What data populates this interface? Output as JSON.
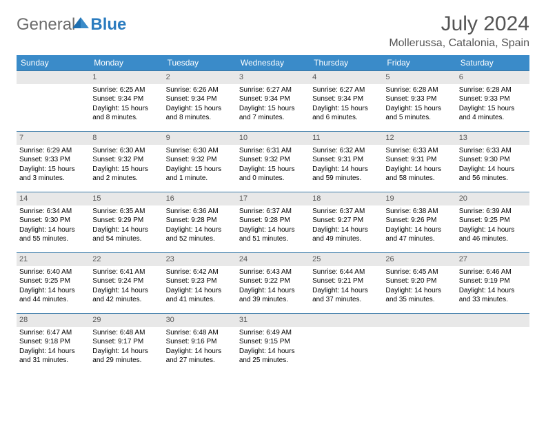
{
  "logo": {
    "text1": "General",
    "text2": "Blue"
  },
  "title": "July 2024",
  "location": "Mollerussa, Catalonia, Spain",
  "colors": {
    "header_bg": "#3a8bc9",
    "header_text": "#ffffff",
    "daynum_bg": "#e8e8e8",
    "border": "#3a7aa8",
    "logo_general": "#6b6b6b",
    "logo_blue": "#2a7bbf"
  },
  "day_headers": [
    "Sunday",
    "Monday",
    "Tuesday",
    "Wednesday",
    "Thursday",
    "Friday",
    "Saturday"
  ],
  "weeks": [
    [
      {
        "empty": true
      },
      {
        "num": "1",
        "sunrise": "6:25 AM",
        "sunset": "9:34 PM",
        "daylight": "15 hours and 8 minutes."
      },
      {
        "num": "2",
        "sunrise": "6:26 AM",
        "sunset": "9:34 PM",
        "daylight": "15 hours and 8 minutes."
      },
      {
        "num": "3",
        "sunrise": "6:27 AM",
        "sunset": "9:34 PM",
        "daylight": "15 hours and 7 minutes."
      },
      {
        "num": "4",
        "sunrise": "6:27 AM",
        "sunset": "9:34 PM",
        "daylight": "15 hours and 6 minutes."
      },
      {
        "num": "5",
        "sunrise": "6:28 AM",
        "sunset": "9:33 PM",
        "daylight": "15 hours and 5 minutes."
      },
      {
        "num": "6",
        "sunrise": "6:28 AM",
        "sunset": "9:33 PM",
        "daylight": "15 hours and 4 minutes."
      }
    ],
    [
      {
        "num": "7",
        "sunrise": "6:29 AM",
        "sunset": "9:33 PM",
        "daylight": "15 hours and 3 minutes."
      },
      {
        "num": "8",
        "sunrise": "6:30 AM",
        "sunset": "9:32 PM",
        "daylight": "15 hours and 2 minutes."
      },
      {
        "num": "9",
        "sunrise": "6:30 AM",
        "sunset": "9:32 PM",
        "daylight": "15 hours and 1 minute."
      },
      {
        "num": "10",
        "sunrise": "6:31 AM",
        "sunset": "9:32 PM",
        "daylight": "15 hours and 0 minutes."
      },
      {
        "num": "11",
        "sunrise": "6:32 AM",
        "sunset": "9:31 PM",
        "daylight": "14 hours and 59 minutes."
      },
      {
        "num": "12",
        "sunrise": "6:33 AM",
        "sunset": "9:31 PM",
        "daylight": "14 hours and 58 minutes."
      },
      {
        "num": "13",
        "sunrise": "6:33 AM",
        "sunset": "9:30 PM",
        "daylight": "14 hours and 56 minutes."
      }
    ],
    [
      {
        "num": "14",
        "sunrise": "6:34 AM",
        "sunset": "9:30 PM",
        "daylight": "14 hours and 55 minutes."
      },
      {
        "num": "15",
        "sunrise": "6:35 AM",
        "sunset": "9:29 PM",
        "daylight": "14 hours and 54 minutes."
      },
      {
        "num": "16",
        "sunrise": "6:36 AM",
        "sunset": "9:28 PM",
        "daylight": "14 hours and 52 minutes."
      },
      {
        "num": "17",
        "sunrise": "6:37 AM",
        "sunset": "9:28 PM",
        "daylight": "14 hours and 51 minutes."
      },
      {
        "num": "18",
        "sunrise": "6:37 AM",
        "sunset": "9:27 PM",
        "daylight": "14 hours and 49 minutes."
      },
      {
        "num": "19",
        "sunrise": "6:38 AM",
        "sunset": "9:26 PM",
        "daylight": "14 hours and 47 minutes."
      },
      {
        "num": "20",
        "sunrise": "6:39 AM",
        "sunset": "9:25 PM",
        "daylight": "14 hours and 46 minutes."
      }
    ],
    [
      {
        "num": "21",
        "sunrise": "6:40 AM",
        "sunset": "9:25 PM",
        "daylight": "14 hours and 44 minutes."
      },
      {
        "num": "22",
        "sunrise": "6:41 AM",
        "sunset": "9:24 PM",
        "daylight": "14 hours and 42 minutes."
      },
      {
        "num": "23",
        "sunrise": "6:42 AM",
        "sunset": "9:23 PM",
        "daylight": "14 hours and 41 minutes."
      },
      {
        "num": "24",
        "sunrise": "6:43 AM",
        "sunset": "9:22 PM",
        "daylight": "14 hours and 39 minutes."
      },
      {
        "num": "25",
        "sunrise": "6:44 AM",
        "sunset": "9:21 PM",
        "daylight": "14 hours and 37 minutes."
      },
      {
        "num": "26",
        "sunrise": "6:45 AM",
        "sunset": "9:20 PM",
        "daylight": "14 hours and 35 minutes."
      },
      {
        "num": "27",
        "sunrise": "6:46 AM",
        "sunset": "9:19 PM",
        "daylight": "14 hours and 33 minutes."
      }
    ],
    [
      {
        "num": "28",
        "sunrise": "6:47 AM",
        "sunset": "9:18 PM",
        "daylight": "14 hours and 31 minutes."
      },
      {
        "num": "29",
        "sunrise": "6:48 AM",
        "sunset": "9:17 PM",
        "daylight": "14 hours and 29 minutes."
      },
      {
        "num": "30",
        "sunrise": "6:48 AM",
        "sunset": "9:16 PM",
        "daylight": "14 hours and 27 minutes."
      },
      {
        "num": "31",
        "sunrise": "6:49 AM",
        "sunset": "9:15 PM",
        "daylight": "14 hours and 25 minutes."
      },
      {
        "empty": true
      },
      {
        "empty": true
      },
      {
        "empty": true
      }
    ]
  ],
  "labels": {
    "sunrise_prefix": "Sunrise: ",
    "sunset_prefix": "Sunset: ",
    "daylight_prefix": "Daylight: "
  }
}
